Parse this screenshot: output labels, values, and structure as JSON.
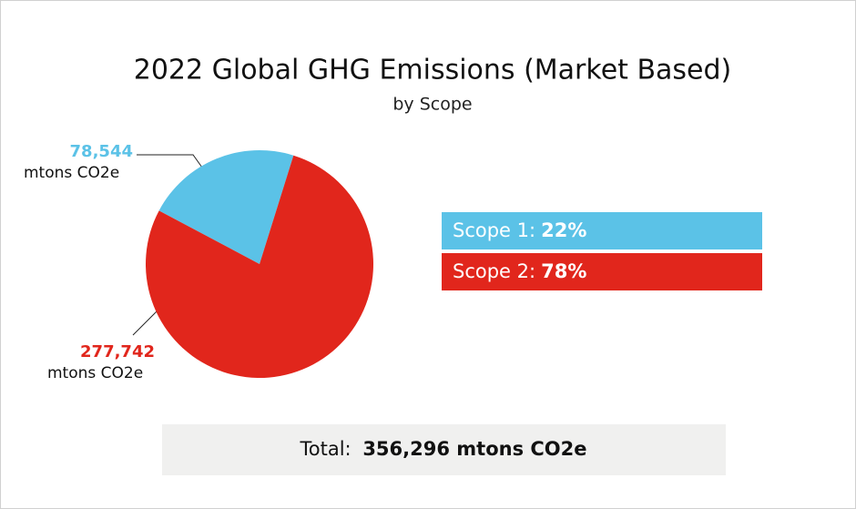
{
  "chart_data": {
    "type": "pie",
    "title": "2022 Global GHG Emissions (Market Based)",
    "subtitle": "by Scope",
    "categories": [
      "Scope 1:",
      "Scope 2:"
    ],
    "values": [
      78544,
      277742
    ],
    "value_labels": [
      "78,544",
      "277,742"
    ],
    "unit": "mtons CO2e",
    "percentages": [
      22,
      78
    ],
    "percentage_labels": [
      "22%",
      "78%"
    ],
    "colors": [
      "#5bc2e7",
      "#e1261c"
    ],
    "total_label": "Total:",
    "total": 356296,
    "total_value_label": "356,296 mtons CO2e"
  }
}
